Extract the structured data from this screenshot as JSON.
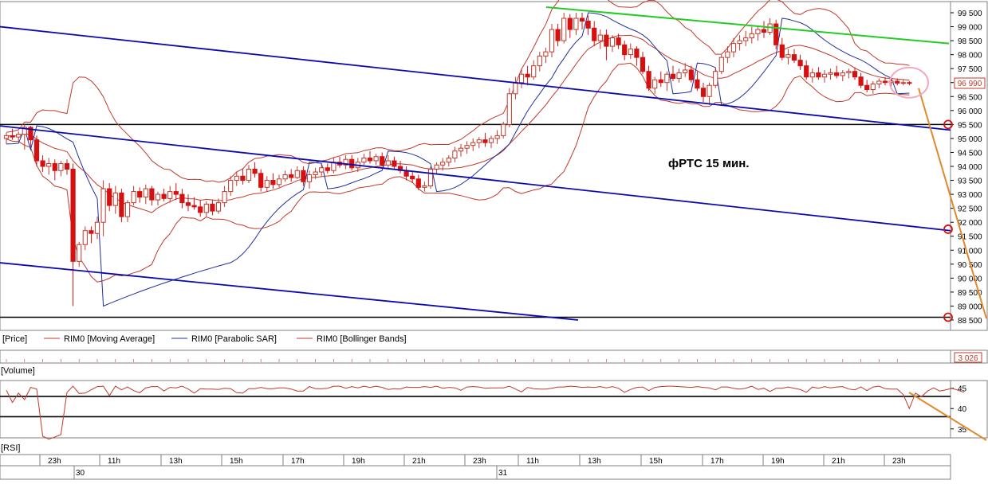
{
  "chart_data": {
    "type": "candlestick",
    "annotation": "фРТС  15 мин.",
    "price_axis": {
      "ticks": [
        "99 500",
        "99 000",
        "98 500",
        "98 000",
        "97 500",
        "97 000",
        "96 500",
        "96 000",
        "95 500",
        "95 000",
        "94 500",
        "94 000",
        "93 500",
        "93 000",
        "92 500",
        "92 000",
        "91 500",
        "91 000",
        "90 500",
        "90 000",
        "89 500",
        "89 000",
        "88 500"
      ],
      "tick_values": [
        99500,
        99000,
        98500,
        98000,
        97500,
        97000,
        96500,
        96000,
        95500,
        95000,
        94500,
        94000,
        93500,
        93000,
        92500,
        92000,
        91500,
        91000,
        90500,
        90000,
        89500,
        89000,
        88500
      ],
      "ylim": [
        88400,
        99800
      ],
      "last_price": 96990,
      "last_price_label": "96 990"
    },
    "legend": {
      "price_label": "[Price]",
      "items": [
        {
          "name": "RIM0 [Moving Average]",
          "color": "#c0392b"
        },
        {
          "name": "RIM0 [Parabolic SAR]",
          "color": "#1f2f9e"
        },
        {
          "name": "RIM0 [Bollinger Bands]",
          "color": "#c0392b"
        }
      ]
    },
    "volume": {
      "label": "[Volume]",
      "value_label": "3 026"
    },
    "rsi": {
      "label": "[RSI]",
      "ticks": [
        "45",
        "40",
        "35"
      ],
      "tick_values": [
        45,
        40,
        35
      ],
      "levels": [
        43,
        38
      ],
      "ylim": [
        33,
        46.5
      ],
      "values": [
        44.5,
        41.5,
        43.8,
        42.2,
        45.2,
        44.8,
        33.2,
        32.5,
        33.0,
        33.6,
        44.0,
        45.5,
        43.7,
        43.8,
        44.6,
        45.4,
        45.5,
        43.2,
        45.5,
        44.6,
        45.3,
        44.4,
        43.9,
        45.1,
        45.4,
        45.4,
        44.3,
        45.2,
        45.1,
        45.5,
        44.8,
        43.8,
        44.9,
        44.8,
        44.8,
        44.7,
        45.0,
        44.9,
        43.9,
        43.8,
        44.9,
        44.9,
        45.2,
        44.9,
        44.9,
        45.1,
        45.1,
        44.8,
        44.3,
        44.3,
        45.4,
        44.9,
        44.9,
        45.0,
        45.5,
        45.5,
        45.0,
        45.4,
        45.1,
        45.5,
        45.2,
        45.5,
        45.2,
        44.7,
        44.9,
        44.8,
        45.3,
        45.2,
        45.2,
        45.4,
        45.2,
        45.5,
        45.0,
        45.2,
        45.1,
        44.5,
        45.3,
        45.4,
        45.3,
        45.0,
        45.1,
        45.1,
        45.1,
        45.5,
        44.8,
        44.1,
        45.2,
        44.9,
        44.8,
        44.8,
        45.0,
        45.3,
        45.3,
        45.5,
        45.4,
        45.2,
        45.3,
        45.2,
        45.4,
        45.1,
        45.4,
        45.0,
        44.0,
        44.7,
        45.2,
        45.3,
        44.4,
        45.2,
        45.4,
        45.5,
        45.5,
        45.4,
        45.3,
        45.2,
        45.4,
        45.2,
        45.1,
        44.6,
        45.3,
        45.3,
        45.0,
        44.8,
        45.0,
        45.5,
        44.7,
        45.0,
        44.2,
        45.0,
        45.0,
        45.3,
        45.0,
        44.7,
        44.0,
        45.3,
        45.0,
        45.4,
        45.1,
        45.3,
        45.4,
        44.8,
        44.6,
        45.3,
        44.4,
        45.3,
        45.5,
        44.9,
        44.8,
        44.8,
        43.4,
        40.0,
        43.8,
        42.9,
        44.3,
        45.1,
        44.3,
        44.6,
        45.0,
        44.5,
        44.0
      ]
    },
    "time_axis": {
      "hour_labels": [
        "23h",
        "11h",
        "13h",
        "15h",
        "17h",
        "19h",
        "21h",
        "23h",
        "11h",
        "13h",
        "15h",
        "17h",
        "19h",
        "21h",
        "23h"
      ],
      "date_labels": [
        "30",
        "31"
      ]
    },
    "series": [
      {
        "o": 95000,
        "h": 95200,
        "l": 94800,
        "c": 95100
      },
      {
        "o": 95100,
        "h": 95350,
        "l": 94950,
        "c": 95050
      },
      {
        "o": 95050,
        "h": 95250,
        "l": 94900,
        "c": 95150
      },
      {
        "o": 95150,
        "h": 95500,
        "l": 94600,
        "c": 95400
      },
      {
        "o": 95400,
        "h": 95450,
        "l": 94700,
        "c": 94950
      },
      {
        "o": 94950,
        "h": 95100,
        "l": 94000,
        "c": 94200
      },
      {
        "o": 94200,
        "h": 94400,
        "l": 93800,
        "c": 94000
      },
      {
        "o": 94000,
        "h": 94300,
        "l": 93700,
        "c": 94100
      },
      {
        "o": 94100,
        "h": 94250,
        "l": 93500,
        "c": 93850
      },
      {
        "o": 93850,
        "h": 94200,
        "l": 93650,
        "c": 94100
      },
      {
        "o": 94100,
        "h": 94250,
        "l": 93700,
        "c": 93900
      },
      {
        "o": 93900,
        "h": 94100,
        "l": 89000,
        "c": 90600
      },
      {
        "o": 90600,
        "h": 91300,
        "l": 90400,
        "c": 91200
      },
      {
        "o": 91200,
        "h": 91850,
        "l": 91000,
        "c": 91700
      },
      {
        "o": 91700,
        "h": 91850,
        "l": 91250,
        "c": 91600
      },
      {
        "o": 91600,
        "h": 92200,
        "l": 91400,
        "c": 92000
      },
      {
        "o": 92000,
        "h": 93500,
        "l": 91500,
        "c": 93200
      },
      {
        "o": 93200,
        "h": 93400,
        "l": 92400,
        "c": 92600
      },
      {
        "o": 92600,
        "h": 93300,
        "l": 92300,
        "c": 93050
      },
      {
        "o": 93050,
        "h": 93200,
        "l": 92000,
        "c": 92200
      },
      {
        "o": 92200,
        "h": 92800,
        "l": 92000,
        "c": 92700
      },
      {
        "o": 92700,
        "h": 93300,
        "l": 92600,
        "c": 93100
      },
      {
        "o": 93100,
        "h": 93250,
        "l": 92700,
        "c": 92900
      },
      {
        "o": 92900,
        "h": 93350,
        "l": 92650,
        "c": 93200
      },
      {
        "o": 93200,
        "h": 93300,
        "l": 92600,
        "c": 92800
      },
      {
        "o": 92800,
        "h": 93100,
        "l": 92600,
        "c": 93000
      },
      {
        "o": 93000,
        "h": 93200,
        "l": 92750,
        "c": 92850
      },
      {
        "o": 92850,
        "h": 93300,
        "l": 92700,
        "c": 93100
      },
      {
        "o": 93100,
        "h": 93400,
        "l": 92800,
        "c": 93000
      },
      {
        "o": 93000,
        "h": 93200,
        "l": 92500,
        "c": 92700
      },
      {
        "o": 92700,
        "h": 93000,
        "l": 92400,
        "c": 92600
      },
      {
        "o": 92600,
        "h": 92900,
        "l": 92450,
        "c": 92550
      },
      {
        "o": 92550,
        "h": 92800,
        "l": 92200,
        "c": 92350
      },
      {
        "o": 92350,
        "h": 92750,
        "l": 92200,
        "c": 92650
      },
      {
        "o": 92650,
        "h": 92800,
        "l": 92250,
        "c": 92400
      },
      {
        "o": 92400,
        "h": 92850,
        "l": 92300,
        "c": 92700
      },
      {
        "o": 92700,
        "h": 93300,
        "l": 92550,
        "c": 93100
      },
      {
        "o": 93100,
        "h": 93650,
        "l": 92950,
        "c": 93500
      },
      {
        "o": 93500,
        "h": 93800,
        "l": 93300,
        "c": 93650
      },
      {
        "o": 93650,
        "h": 93900,
        "l": 93350,
        "c": 93500
      },
      {
        "o": 93500,
        "h": 94050,
        "l": 93400,
        "c": 93900
      },
      {
        "o": 93900,
        "h": 94150,
        "l": 93600,
        "c": 93750
      },
      {
        "o": 93750,
        "h": 93900,
        "l": 93100,
        "c": 93250
      },
      {
        "o": 93250,
        "h": 93650,
        "l": 93100,
        "c": 93500
      },
      {
        "o": 93500,
        "h": 93750,
        "l": 93200,
        "c": 93350
      },
      {
        "o": 93350,
        "h": 93700,
        "l": 93250,
        "c": 93550
      },
      {
        "o": 93550,
        "h": 93850,
        "l": 93450,
        "c": 93700
      },
      {
        "o": 93700,
        "h": 93900,
        "l": 93450,
        "c": 93600
      },
      {
        "o": 93600,
        "h": 94000,
        "l": 93550,
        "c": 93850
      },
      {
        "o": 93850,
        "h": 94000,
        "l": 93300,
        "c": 93450
      },
      {
        "o": 93450,
        "h": 93850,
        "l": 93200,
        "c": 93700
      },
      {
        "o": 93700,
        "h": 93950,
        "l": 93550,
        "c": 93800
      },
      {
        "o": 93800,
        "h": 94100,
        "l": 93650,
        "c": 93950
      },
      {
        "o": 93950,
        "h": 94100,
        "l": 93750,
        "c": 93850
      },
      {
        "o": 93850,
        "h": 94300,
        "l": 93750,
        "c": 94150
      },
      {
        "o": 94150,
        "h": 94350,
        "l": 93950,
        "c": 94050
      },
      {
        "o": 94050,
        "h": 94400,
        "l": 93900,
        "c": 94250
      },
      {
        "o": 94250,
        "h": 94400,
        "l": 93850,
        "c": 93950
      },
      {
        "o": 93950,
        "h": 94300,
        "l": 93800,
        "c": 94150
      },
      {
        "o": 94150,
        "h": 94450,
        "l": 94050,
        "c": 94300
      },
      {
        "o": 94300,
        "h": 94550,
        "l": 94100,
        "c": 94200
      },
      {
        "o": 94200,
        "h": 94450,
        "l": 94050,
        "c": 94350
      },
      {
        "o": 94350,
        "h": 94500,
        "l": 94000,
        "c": 94050
      },
      {
        "o": 94050,
        "h": 94400,
        "l": 93900,
        "c": 94200
      },
      {
        "o": 94200,
        "h": 94350,
        "l": 93900,
        "c": 94000
      },
      {
        "o": 94000,
        "h": 94200,
        "l": 93750,
        "c": 93850
      },
      {
        "o": 93850,
        "h": 94000,
        "l": 93500,
        "c": 93650
      },
      {
        "o": 93650,
        "h": 93800,
        "l": 93400,
        "c": 93550
      },
      {
        "o": 93550,
        "h": 93700,
        "l": 93150,
        "c": 93250
      },
      {
        "o": 93250,
        "h": 93450,
        "l": 93100,
        "c": 93300
      },
      {
        "o": 93300,
        "h": 94000,
        "l": 93200,
        "c": 93900
      },
      {
        "o": 93900,
        "h": 94150,
        "l": 93750,
        "c": 94050
      },
      {
        "o": 94050,
        "h": 94300,
        "l": 93850,
        "c": 94150
      },
      {
        "o": 94150,
        "h": 94400,
        "l": 94000,
        "c": 94300
      },
      {
        "o": 94300,
        "h": 94700,
        "l": 94150,
        "c": 94550
      },
      {
        "o": 94550,
        "h": 94800,
        "l": 94350,
        "c": 94650
      },
      {
        "o": 94650,
        "h": 94900,
        "l": 94450,
        "c": 94750
      },
      {
        "o": 94750,
        "h": 95000,
        "l": 94550,
        "c": 94850
      },
      {
        "o": 94850,
        "h": 95050,
        "l": 94650,
        "c": 94950
      },
      {
        "o": 94950,
        "h": 95200,
        "l": 94700,
        "c": 94850
      },
      {
        "o": 94850,
        "h": 95100,
        "l": 94650,
        "c": 95000
      },
      {
        "o": 95000,
        "h": 95300,
        "l": 94800,
        "c": 95100
      },
      {
        "o": 95100,
        "h": 95600,
        "l": 95000,
        "c": 95500
      },
      {
        "o": 95500,
        "h": 96800,
        "l": 95400,
        "c": 96600
      },
      {
        "o": 96600,
        "h": 97200,
        "l": 96400,
        "c": 97000
      },
      {
        "o": 97000,
        "h": 97500,
        "l": 96800,
        "c": 97300
      },
      {
        "o": 97300,
        "h": 97600,
        "l": 96900,
        "c": 97200
      },
      {
        "o": 97200,
        "h": 97800,
        "l": 97100,
        "c": 97600
      },
      {
        "o": 97600,
        "h": 98100,
        "l": 97400,
        "c": 97950
      },
      {
        "o": 97950,
        "h": 98250,
        "l": 97700,
        "c": 98100
      },
      {
        "o": 98100,
        "h": 99100,
        "l": 97900,
        "c": 98900
      },
      {
        "o": 98900,
        "h": 99100,
        "l": 98300,
        "c": 98500
      },
      {
        "o": 98500,
        "h": 99500,
        "l": 98400,
        "c": 99300
      },
      {
        "o": 99300,
        "h": 99450,
        "l": 98600,
        "c": 98900
      },
      {
        "o": 98900,
        "h": 99500,
        "l": 98700,
        "c": 99300
      },
      {
        "o": 99300,
        "h": 99500,
        "l": 98900,
        "c": 99200
      },
      {
        "o": 99200,
        "h": 99400,
        "l": 98700,
        "c": 98950
      },
      {
        "o": 98950,
        "h": 99200,
        "l": 98300,
        "c": 98500
      },
      {
        "o": 98500,
        "h": 98900,
        "l": 98200,
        "c": 98700
      },
      {
        "o": 98700,
        "h": 98900,
        "l": 97800,
        "c": 98300
      },
      {
        "o": 98300,
        "h": 98700,
        "l": 98100,
        "c": 98600
      },
      {
        "o": 98600,
        "h": 98750,
        "l": 98200,
        "c": 98350
      },
      {
        "o": 98350,
        "h": 98500,
        "l": 97800,
        "c": 98000
      },
      {
        "o": 98000,
        "h": 98400,
        "l": 97850,
        "c": 98200
      },
      {
        "o": 98200,
        "h": 98300,
        "l": 97600,
        "c": 97900
      },
      {
        "o": 97900,
        "h": 98100,
        "l": 97300,
        "c": 97400
      },
      {
        "o": 97400,
        "h": 97600,
        "l": 96700,
        "c": 96800
      },
      {
        "o": 96800,
        "h": 97200,
        "l": 96600,
        "c": 97100
      },
      {
        "o": 97100,
        "h": 97400,
        "l": 96850,
        "c": 97000
      },
      {
        "o": 97000,
        "h": 97400,
        "l": 96700,
        "c": 97300
      },
      {
        "o": 97300,
        "h": 97600,
        "l": 97050,
        "c": 97150
      },
      {
        "o": 97150,
        "h": 97500,
        "l": 97000,
        "c": 97350
      },
      {
        "o": 97350,
        "h": 97700,
        "l": 97200,
        "c": 97450
      },
      {
        "o": 97450,
        "h": 97600,
        "l": 97000,
        "c": 97100
      },
      {
        "o": 97100,
        "h": 97400,
        "l": 96700,
        "c": 96800
      },
      {
        "o": 96800,
        "h": 97000,
        "l": 96300,
        "c": 96500
      },
      {
        "o": 96500,
        "h": 97000,
        "l": 96200,
        "c": 96900
      },
      {
        "o": 96900,
        "h": 97500,
        "l": 96800,
        "c": 97400
      },
      {
        "o": 97400,
        "h": 98000,
        "l": 97300,
        "c": 97900
      },
      {
        "o": 97900,
        "h": 98300,
        "l": 97700,
        "c": 98100
      },
      {
        "o": 98100,
        "h": 98600,
        "l": 97900,
        "c": 98400
      },
      {
        "o": 98400,
        "h": 98700,
        "l": 98150,
        "c": 98500
      },
      {
        "o": 98500,
        "h": 98850,
        "l": 98300,
        "c": 98600
      },
      {
        "o": 98600,
        "h": 99000,
        "l": 98400,
        "c": 98750
      },
      {
        "o": 98750,
        "h": 99050,
        "l": 98500,
        "c": 98900
      },
      {
        "o": 98900,
        "h": 99200,
        "l": 98600,
        "c": 98800
      },
      {
        "o": 98800,
        "h": 99300,
        "l": 98700,
        "c": 99100
      },
      {
        "o": 99100,
        "h": 99250,
        "l": 98200,
        "c": 98350
      },
      {
        "o": 98350,
        "h": 98600,
        "l": 97800,
        "c": 97900
      },
      {
        "o": 97900,
        "h": 98200,
        "l": 97650,
        "c": 98000
      },
      {
        "o": 98000,
        "h": 98200,
        "l": 97700,
        "c": 97800
      },
      {
        "o": 97800,
        "h": 98000,
        "l": 97450,
        "c": 97600
      },
      {
        "o": 97600,
        "h": 97800,
        "l": 97100,
        "c": 97200
      },
      {
        "o": 97200,
        "h": 97500,
        "l": 97000,
        "c": 97350
      },
      {
        "o": 97350,
        "h": 97550,
        "l": 97100,
        "c": 97200
      },
      {
        "o": 97200,
        "h": 97450,
        "l": 97000,
        "c": 97300
      },
      {
        "o": 97300,
        "h": 97500,
        "l": 97100,
        "c": 97350
      },
      {
        "o": 97350,
        "h": 97600,
        "l": 97150,
        "c": 97250
      },
      {
        "o": 97250,
        "h": 97450,
        "l": 97050,
        "c": 97350
      },
      {
        "o": 97350,
        "h": 97500,
        "l": 97150,
        "c": 97400
      },
      {
        "o": 97400,
        "h": 97550,
        "l": 97100,
        "c": 97200
      },
      {
        "o": 97200,
        "h": 97350,
        "l": 96800,
        "c": 96900
      },
      {
        "o": 96900,
        "h": 97100,
        "l": 96650,
        "c": 96750
      },
      {
        "o": 96750,
        "h": 97050,
        "l": 96600,
        "c": 96950
      },
      {
        "o": 96950,
        "h": 97150,
        "l": 96800,
        "c": 97050
      },
      {
        "o": 97050,
        "h": 97200,
        "l": 96900,
        "c": 97000
      },
      {
        "o": 97000,
        "h": 97150,
        "l": 96850,
        "c": 97050
      },
      {
        "o": 97050,
        "h": 97150,
        "l": 96900,
        "c": 96980
      },
      {
        "o": 96980,
        "h": 97100,
        "l": 96900,
        "c": 97000
      },
      {
        "o": 97000,
        "h": 97050,
        "l": 96900,
        "c": 96990
      }
    ]
  },
  "colors": {
    "up": "#c0392b",
    "down": "#d41010",
    "ma": "#c0392b",
    "sar": "#1f2f9e",
    "bb": "#c0392b",
    "channel": "#0a0ab0",
    "resistance": "#22cc22",
    "forecast": "#e08a2c",
    "marker": "#e05070",
    "grid": "#333333"
  }
}
